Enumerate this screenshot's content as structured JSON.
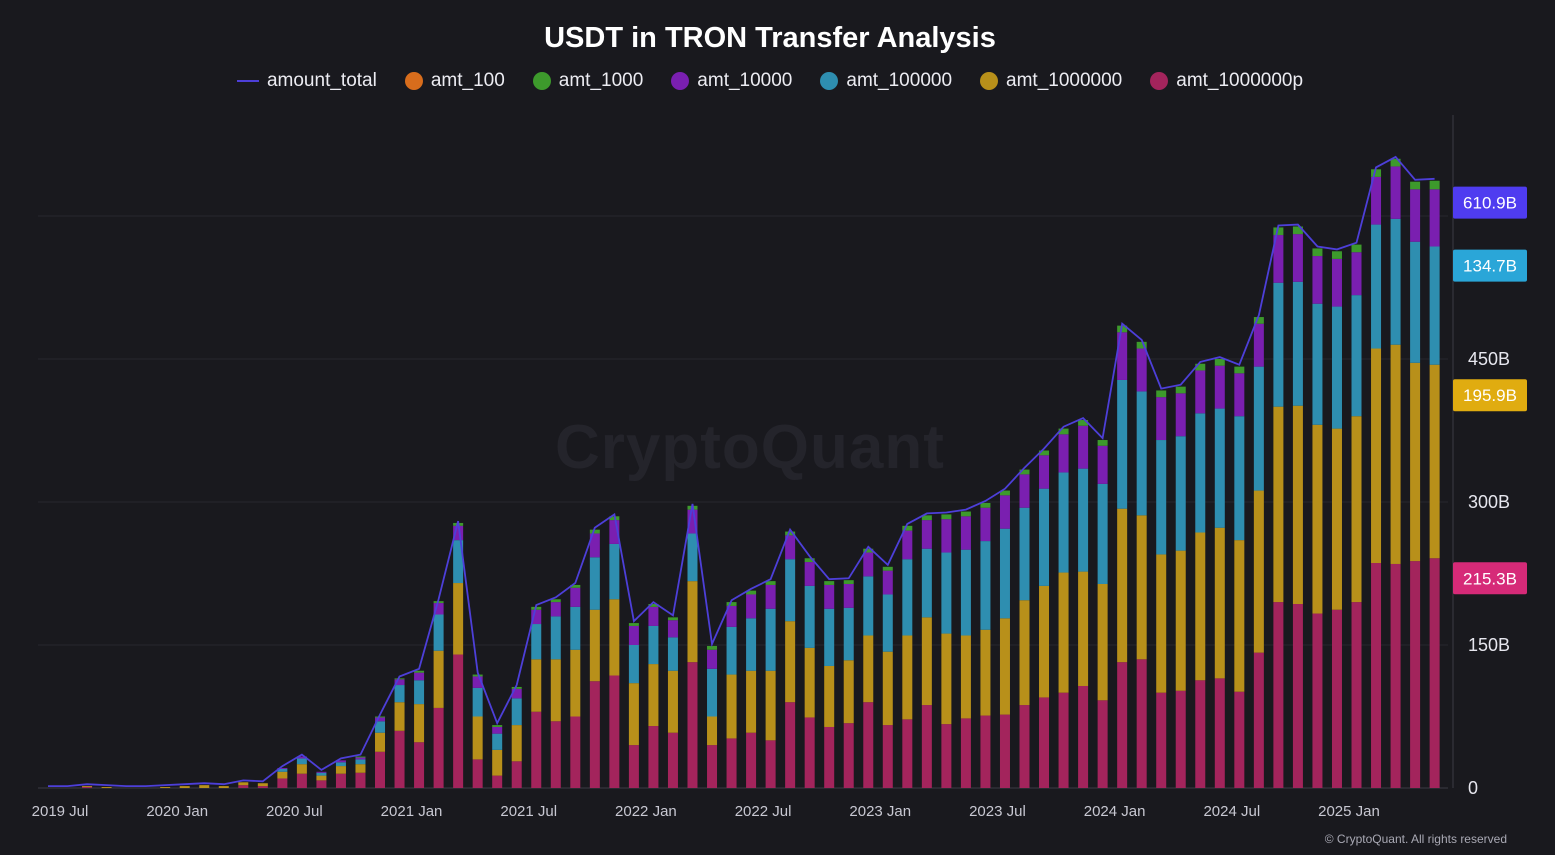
{
  "chart_data": {
    "type": "bar",
    "stacked": true,
    "title": "USDT in TRON Transfer Analysis",
    "x_tick_labels": [
      "2019 Jul",
      "2020 Jan",
      "2020 Jul",
      "2021 Jan",
      "2021 Jul",
      "2022 Jan",
      "2022 Jul",
      "2023 Jan",
      "2023 Jul",
      "2024 Jan",
      "2024 Jul",
      "2025 Jan"
    ],
    "x_tick_month_index": [
      0,
      6,
      12,
      18,
      24,
      30,
      36,
      42,
      48,
      54,
      60,
      66
    ],
    "y_axis_ticks": [
      {
        "value": 0,
        "label": "0"
      },
      {
        "value": 150,
        "label": "150B"
      },
      {
        "value": 300,
        "label": "300B"
      },
      {
        "value": 450,
        "label": "450B"
      }
    ],
    "ylim": [
      0,
      700
    ],
    "units": "B",
    "grid": true,
    "legend_position": "top",
    "series": [
      {
        "key": "amt_1000000p",
        "name": "amt_1000000p",
        "color": "#a3245c",
        "values": [
          0,
          0,
          1,
          0,
          0,
          0,
          0,
          0,
          0,
          0,
          3,
          2,
          10,
          15,
          8,
          15,
          16,
          38,
          60,
          48,
          84,
          140,
          30,
          13,
          28,
          80,
          70,
          75,
          112,
          118,
          45,
          65,
          58,
          132,
          45,
          52,
          58,
          50,
          90,
          74,
          64,
          68,
          90,
          66,
          72,
          87,
          67,
          73,
          76,
          77,
          87,
          95,
          100,
          107,
          92,
          132,
          135,
          100,
          102,
          113,
          115,
          101,
          142,
          195,
          193,
          183,
          187,
          195,
          236,
          235,
          238,
          241
        ]
      },
      {
        "key": "amt_1000000",
        "name": "amt_1000000",
        "color": "#b8901a",
        "values": [
          0,
          0,
          1,
          1,
          0,
          0,
          1,
          2,
          3,
          2,
          3,
          3,
          7,
          10,
          5,
          8,
          9,
          20,
          30,
          40,
          60,
          75,
          45,
          27,
          38,
          55,
          65,
          70,
          75,
          80,
          65,
          65,
          65,
          85,
          30,
          67,
          65,
          73,
          85,
          73,
          64,
          66,
          70,
          77,
          88,
          92,
          95,
          87,
          90,
          101,
          110,
          117,
          126,
          120,
          122,
          161,
          151,
          145,
          147,
          155,
          158,
          159,
          170,
          205,
          208,
          198,
          190,
          195,
          225,
          230,
          208,
          203
        ]
      },
      {
        "key": "amt_100000",
        "name": "amt_100000",
        "color": "#2e8eb0",
        "values": [
          0,
          0,
          0,
          0,
          0,
          0,
          0,
          0,
          0,
          0,
          0,
          0,
          3,
          6,
          3,
          4,
          5,
          12,
          18,
          25,
          38,
          45,
          30,
          17,
          28,
          37,
          45,
          45,
          55,
          58,
          40,
          40,
          35,
          50,
          50,
          50,
          55,
          65,
          65,
          65,
          60,
          55,
          62,
          60,
          80,
          72,
          85,
          90,
          93,
          94,
          97,
          102,
          105,
          108,
          105,
          135,
          130,
          120,
          120,
          125,
          125,
          130,
          130,
          130,
          130,
          127,
          128,
          127,
          130,
          132,
          127,
          124
        ]
      },
      {
        "key": "amt_10000",
        "name": "amt_10000",
        "color": "#7a1fb0",
        "values": [
          0,
          0,
          0,
          0,
          0,
          0,
          0,
          0,
          0,
          0,
          0,
          0,
          1,
          2,
          1,
          2,
          2,
          4,
          6,
          8,
          12,
          15,
          12,
          7,
          10,
          15,
          15,
          20,
          25,
          25,
          20,
          20,
          18,
          25,
          20,
          22,
          25,
          25,
          25,
          25,
          25,
          25,
          25,
          25,
          30,
          30,
          35,
          35,
          35,
          35,
          35,
          35,
          40,
          45,
          40,
          50,
          45,
          45,
          45,
          45,
          45,
          45,
          45,
          50,
          50,
          50,
          50,
          45,
          50,
          55,
          55,
          60
        ]
      },
      {
        "key": "amt_1000",
        "name": "amt_1000",
        "color": "#3d9a2c",
        "values": [
          0,
          0,
          0,
          0,
          0,
          0,
          0,
          0,
          0,
          0,
          0,
          0,
          0,
          0,
          0,
          0,
          1,
          1,
          1,
          2,
          2,
          3,
          2,
          2,
          2,
          3,
          3,
          3,
          4,
          4,
          3,
          3,
          3,
          4,
          4,
          4,
          4,
          4,
          4,
          4,
          4,
          4,
          4,
          4,
          5,
          5,
          5,
          5,
          5,
          5,
          5,
          5,
          6,
          6,
          6,
          7,
          7,
          7,
          7,
          7,
          7,
          7,
          7,
          8,
          8,
          8,
          8,
          8,
          8,
          8,
          8,
          9
        ]
      },
      {
        "key": "amt_100",
        "name": "amt_100",
        "color": "#d86d1c",
        "values": [
          0,
          0,
          0,
          0,
          0,
          0,
          0,
          0,
          0,
          0,
          0,
          0,
          0,
          0,
          0,
          0,
          0,
          0,
          0,
          0,
          0,
          0,
          0,
          0,
          0,
          0,
          0,
          0,
          0,
          0,
          0,
          0,
          0,
          0,
          0,
          0,
          0,
          0,
          0,
          0,
          0,
          0,
          0,
          0,
          0,
          0,
          0,
          0,
          0,
          0,
          0,
          0,
          0,
          0,
          0,
          0,
          0,
          0,
          0,
          0,
          0,
          0,
          0,
          0,
          0,
          0,
          0,
          0,
          0,
          0,
          0,
          0
        ]
      }
    ],
    "line_series": {
      "name": "amount_total",
      "color": "#4d3fd9"
    },
    "value_badges": [
      {
        "label": "610.9B",
        "color": "#4f3cf0",
        "value": 614
      },
      {
        "label": "134.7B",
        "color": "#2aa6d8",
        "value": 548
      },
      {
        "label": "195.9B",
        "color": "#e0ac10",
        "value": 412
      },
      {
        "label": "215.3B",
        "color": "#d62a78",
        "value": 220
      }
    ]
  },
  "watermark": "CryptoQuant",
  "copyright": "© CryptoQuant. All rights reserved"
}
